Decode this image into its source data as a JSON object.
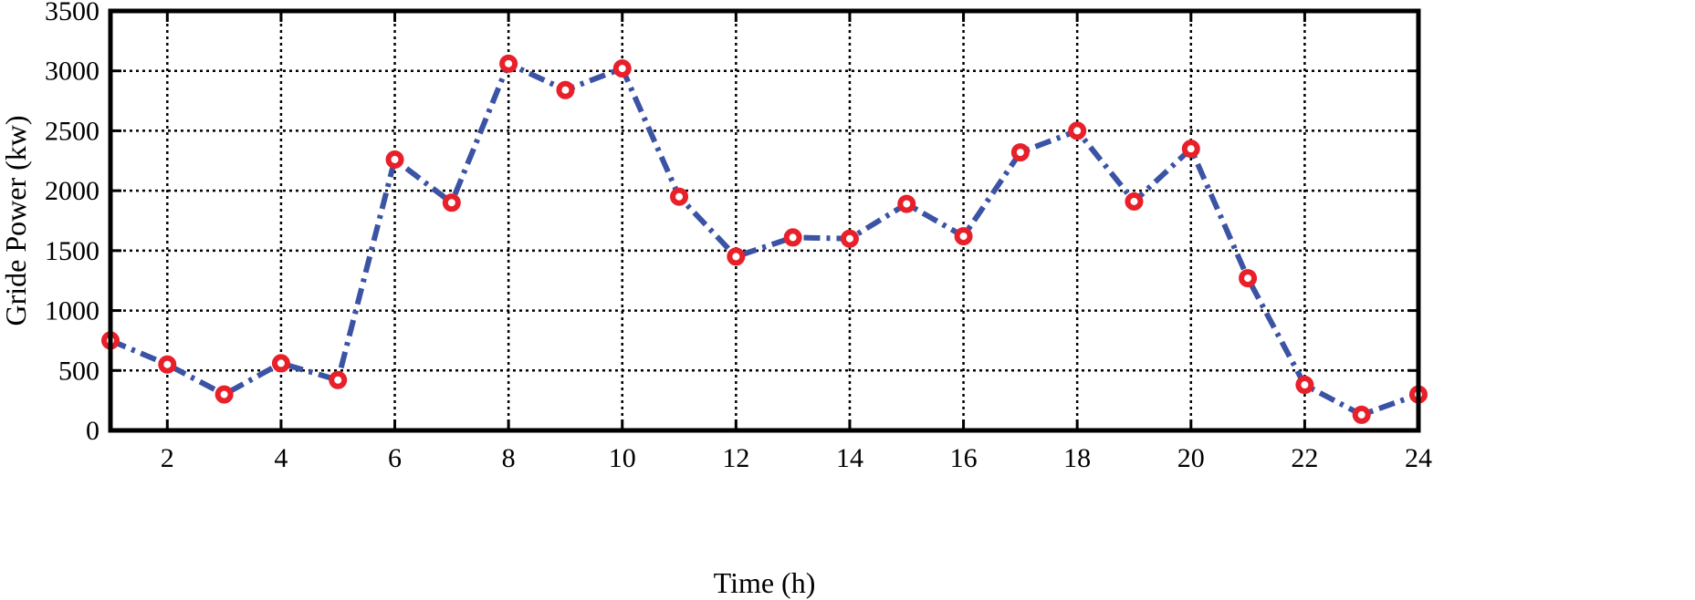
{
  "chart_data": {
    "type": "line",
    "title": "",
    "xlabel": "Time (h)",
    "ylabel": "Gride Power (kw)",
    "xlim": [
      1,
      24
    ],
    "ylim": [
      0,
      3500
    ],
    "xticks": [
      2,
      4,
      6,
      8,
      10,
      12,
      14,
      16,
      18,
      20,
      22,
      24
    ],
    "yticks": [
      0,
      500,
      1000,
      1500,
      2000,
      2500,
      3000,
      3500
    ],
    "grid": true,
    "series": [
      {
        "name": "Gride Power",
        "line_color": "#3a53a4",
        "marker_color": "#e8202a",
        "line_style": "dash-dot",
        "marker": "circle",
        "x": [
          1,
          2,
          3,
          4,
          5,
          6,
          7,
          8,
          9,
          10,
          11,
          12,
          13,
          14,
          15,
          16,
          17,
          18,
          19,
          20,
          21,
          22,
          23,
          24
        ],
        "values": [
          750,
          550,
          300,
          560,
          420,
          2260,
          1900,
          3060,
          2840,
          3020,
          1950,
          1450,
          1610,
          1600,
          1890,
          1620,
          2320,
          2500,
          1910,
          2350,
          1270,
          380,
          130,
          300
        ]
      }
    ]
  }
}
